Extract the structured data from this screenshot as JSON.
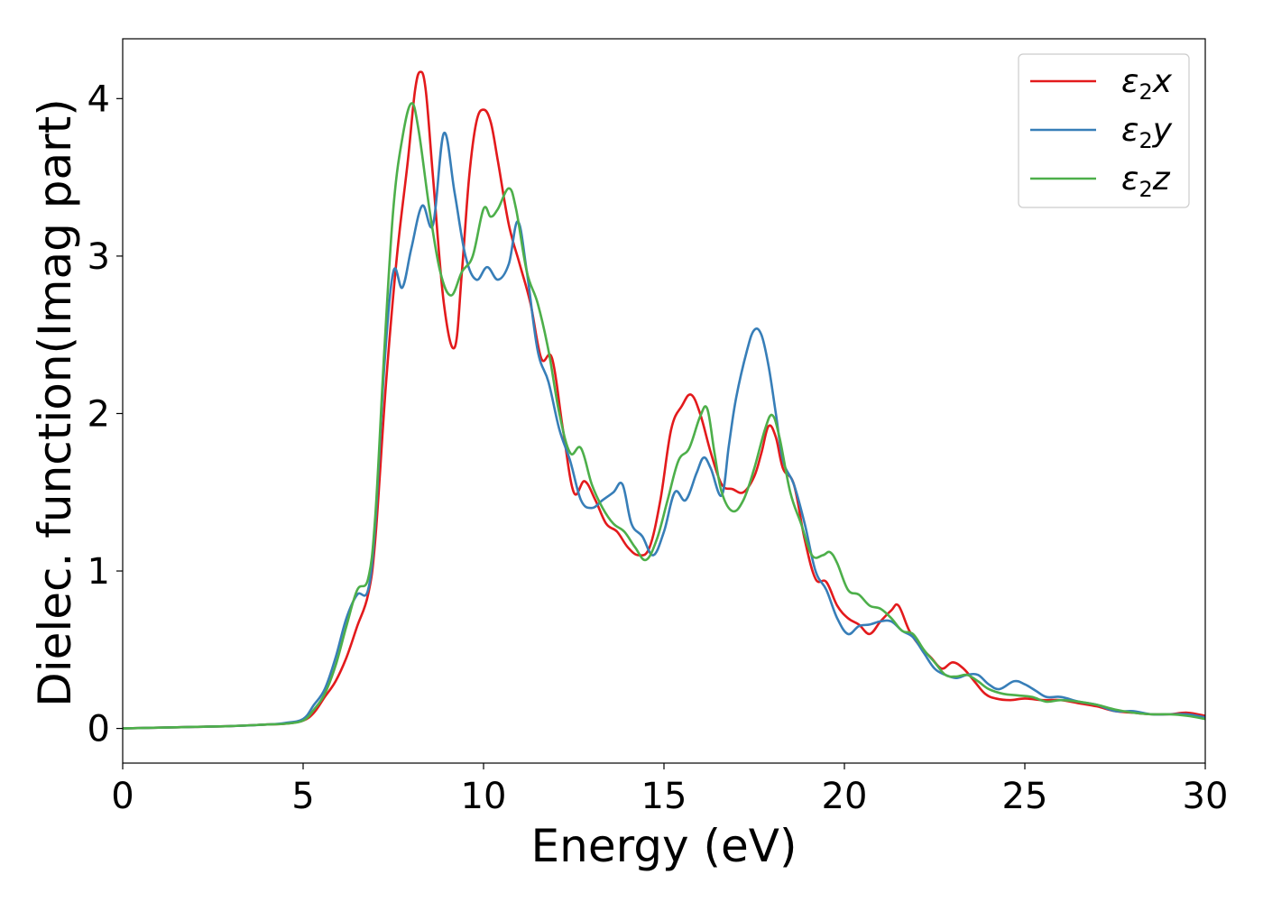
{
  "chart_data": {
    "type": "line",
    "title": "",
    "xlabel": "Energy (eV)",
    "ylabel": "Dielec. function(Imag part)",
    "xlim": [
      0,
      30
    ],
    "ylim": [
      -0.22,
      4.38
    ],
    "xticks": [
      0,
      5,
      10,
      15,
      20,
      25,
      30
    ],
    "yticks": [
      0,
      1,
      2,
      3,
      4
    ],
    "grid": false,
    "legend_position": "top-right",
    "series": [
      {
        "name": "ε2x",
        "legend": {
          "symbol": "ε",
          "sub": "2",
          "axis": "x"
        },
        "color": "#e31a1c",
        "x": [
          0,
          1,
          2,
          3,
          4,
          4.5,
          5,
          5.3,
          5.6,
          5.9,
          6.2,
          6.5,
          6.8,
          7.0,
          7.3,
          7.6,
          7.9,
          8.1,
          8.25,
          8.4,
          8.6,
          8.9,
          9.2,
          9.4,
          9.6,
          9.8,
          10.0,
          10.2,
          10.4,
          10.7,
          11.0,
          11.3,
          11.6,
          11.9,
          12.2,
          12.5,
          12.8,
          13.1,
          13.4,
          13.7,
          14.0,
          14.3,
          14.6,
          14.9,
          15.2,
          15.5,
          15.75,
          16.0,
          16.3,
          16.6,
          16.9,
          17.2,
          17.5,
          17.7,
          17.9,
          18.1,
          18.3,
          18.6,
          18.9,
          19.2,
          19.5,
          19.8,
          20.1,
          20.4,
          20.7,
          21.0,
          21.3,
          21.5,
          21.8,
          22.1,
          22.4,
          22.7,
          23.0,
          23.3,
          23.6,
          23.9,
          24.2,
          24.6,
          25.0,
          25.5,
          26.0,
          26.5,
          27.0,
          27.5,
          28.0,
          28.5,
          29.0,
          29.5,
          30.0
        ],
        "y": [
          0.0,
          0.005,
          0.01,
          0.015,
          0.025,
          0.03,
          0.05,
          0.1,
          0.2,
          0.3,
          0.45,
          0.65,
          0.85,
          1.2,
          2.2,
          3.0,
          3.6,
          4.05,
          4.17,
          4.05,
          3.5,
          2.7,
          2.42,
          2.9,
          3.5,
          3.85,
          3.93,
          3.85,
          3.6,
          3.2,
          2.95,
          2.7,
          2.35,
          2.35,
          1.9,
          1.5,
          1.57,
          1.45,
          1.3,
          1.25,
          1.15,
          1.1,
          1.15,
          1.45,
          1.9,
          2.05,
          2.12,
          2.0,
          1.75,
          1.55,
          1.52,
          1.5,
          1.6,
          1.75,
          1.92,
          1.85,
          1.65,
          1.55,
          1.2,
          0.95,
          0.93,
          0.78,
          0.7,
          0.66,
          0.6,
          0.68,
          0.75,
          0.78,
          0.62,
          0.52,
          0.45,
          0.38,
          0.42,
          0.38,
          0.3,
          0.22,
          0.19,
          0.18,
          0.19,
          0.18,
          0.18,
          0.16,
          0.14,
          0.11,
          0.1,
          0.09,
          0.09,
          0.1,
          0.08
        ]
      },
      {
        "name": "ε2y",
        "legend": {
          "symbol": "ε",
          "sub": "2",
          "axis": "y"
        },
        "color": "#377eb8",
        "x": [
          0,
          1,
          2,
          3,
          4,
          4.5,
          5,
          5.3,
          5.6,
          5.9,
          6.2,
          6.5,
          6.8,
          7.0,
          7.25,
          7.5,
          7.75,
          8.0,
          8.3,
          8.6,
          8.9,
          9.2,
          9.5,
          9.8,
          10.1,
          10.4,
          10.7,
          10.95,
          11.2,
          11.5,
          11.8,
          12.1,
          12.4,
          12.7,
          13.0,
          13.3,
          13.6,
          13.85,
          14.1,
          14.4,
          14.7,
          15.0,
          15.3,
          15.6,
          15.9,
          16.1,
          16.3,
          16.6,
          16.8,
          17.0,
          17.3,
          17.5,
          17.7,
          17.9,
          18.1,
          18.3,
          18.6,
          18.9,
          19.2,
          19.5,
          19.8,
          20.1,
          20.4,
          20.7,
          21.0,
          21.3,
          21.6,
          21.9,
          22.2,
          22.5,
          22.8,
          23.1,
          23.4,
          23.7,
          24.0,
          24.3,
          24.7,
          25.0,
          25.3,
          25.6,
          26.0,
          26.5,
          27.0,
          27.5,
          28.0,
          28.5,
          29.0,
          29.5,
          30.0
        ],
        "y": [
          0.0,
          0.005,
          0.01,
          0.015,
          0.025,
          0.035,
          0.06,
          0.15,
          0.25,
          0.45,
          0.7,
          0.85,
          0.88,
          1.3,
          2.3,
          2.9,
          2.8,
          3.05,
          3.32,
          3.2,
          3.78,
          3.4,
          3.0,
          2.85,
          2.93,
          2.85,
          2.95,
          3.22,
          2.9,
          2.4,
          2.2,
          1.9,
          1.7,
          1.45,
          1.4,
          1.45,
          1.5,
          1.55,
          1.3,
          1.22,
          1.1,
          1.25,
          1.5,
          1.45,
          1.62,
          1.72,
          1.65,
          1.48,
          1.8,
          2.1,
          2.4,
          2.53,
          2.5,
          2.3,
          2.0,
          1.7,
          1.55,
          1.3,
          1.0,
          0.88,
          0.7,
          0.6,
          0.65,
          0.66,
          0.68,
          0.68,
          0.62,
          0.58,
          0.48,
          0.38,
          0.34,
          0.32,
          0.34,
          0.34,
          0.28,
          0.25,
          0.3,
          0.28,
          0.24,
          0.2,
          0.2,
          0.17,
          0.15,
          0.11,
          0.11,
          0.09,
          0.09,
          0.09,
          0.07
        ]
      },
      {
        "name": "ε2z",
        "legend": {
          "symbol": "ε",
          "sub": "2",
          "axis": "z"
        },
        "color": "#4daf4a",
        "x": [
          0,
          1,
          2,
          3,
          4,
          4.5,
          5,
          5.3,
          5.6,
          5.9,
          6.2,
          6.5,
          6.8,
          7.0,
          7.25,
          7.5,
          7.75,
          8.0,
          8.2,
          8.5,
          8.8,
          9.1,
          9.4,
          9.7,
          10.0,
          10.2,
          10.4,
          10.7,
          10.9,
          11.2,
          11.5,
          11.8,
          12.1,
          12.4,
          12.7,
          13.0,
          13.3,
          13.6,
          13.9,
          14.2,
          14.5,
          14.8,
          15.1,
          15.4,
          15.7,
          16.0,
          16.2,
          16.4,
          16.6,
          16.9,
          17.2,
          17.5,
          17.8,
          18.0,
          18.2,
          18.5,
          18.8,
          19.1,
          19.4,
          19.6,
          19.8,
          20.1,
          20.4,
          20.7,
          21.0,
          21.3,
          21.6,
          21.9,
          22.2,
          22.5,
          22.8,
          23.1,
          23.4,
          23.7,
          24.0,
          24.4,
          24.8,
          25.2,
          25.6,
          26.0,
          26.5,
          27.0,
          27.5,
          28.0,
          28.5,
          29.0,
          29.5,
          30.0
        ],
        "y": [
          0.0,
          0.005,
          0.01,
          0.015,
          0.025,
          0.03,
          0.05,
          0.12,
          0.22,
          0.4,
          0.65,
          0.88,
          0.95,
          1.35,
          2.4,
          3.3,
          3.75,
          3.97,
          3.8,
          3.3,
          2.9,
          2.75,
          2.9,
          3.0,
          3.3,
          3.25,
          3.3,
          3.43,
          3.3,
          2.9,
          2.7,
          2.4,
          2.0,
          1.75,
          1.78,
          1.55,
          1.4,
          1.3,
          1.25,
          1.15,
          1.07,
          1.2,
          1.45,
          1.7,
          1.78,
          1.98,
          2.03,
          1.75,
          1.5,
          1.38,
          1.45,
          1.65,
          1.9,
          1.99,
          1.85,
          1.5,
          1.3,
          1.1,
          1.1,
          1.12,
          1.05,
          0.88,
          0.85,
          0.78,
          0.76,
          0.7,
          0.62,
          0.6,
          0.5,
          0.42,
          0.34,
          0.33,
          0.34,
          0.3,
          0.25,
          0.22,
          0.21,
          0.2,
          0.17,
          0.18,
          0.17,
          0.15,
          0.12,
          0.1,
          0.09,
          0.09,
          0.08,
          0.06
        ]
      }
    ]
  }
}
